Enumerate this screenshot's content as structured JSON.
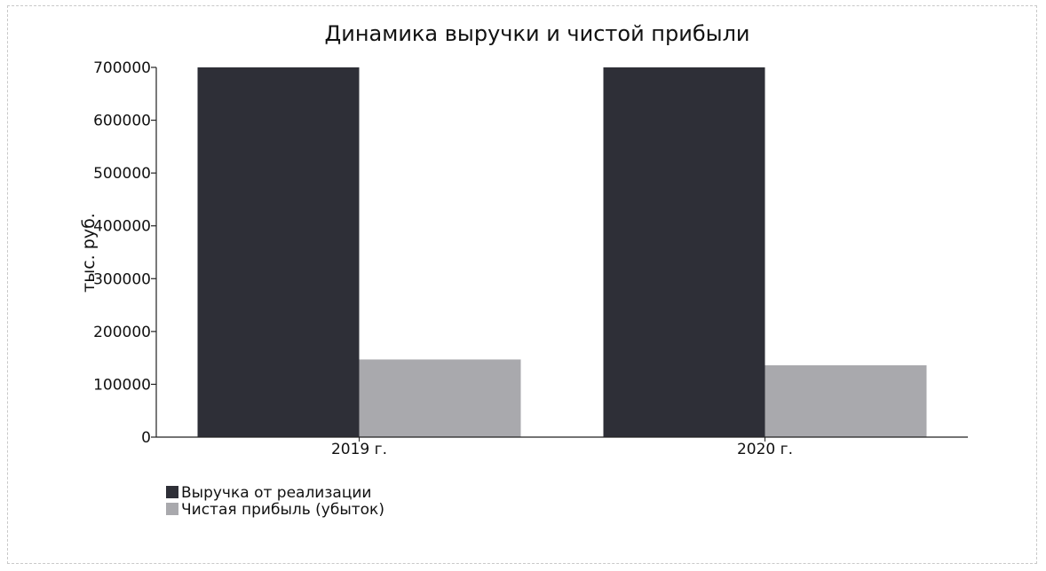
{
  "chart_data": {
    "type": "bar",
    "title": "Динамика выручки и чистой прибыли",
    "xlabel": "",
    "ylabel": "тыс. руб.",
    "categories": [
      "2019 г.",
      "2020 г."
    ],
    "series": [
      {
        "name": "Выручка от реализации",
        "values": [
          700000,
          700000
        ],
        "color": "#2e2f37"
      },
      {
        "name": "Чистая прибыль (убыток)",
        "values": [
          147000,
          136000
        ],
        "color": "#a9a9ad"
      }
    ],
    "ylim": [
      0,
      700000
    ],
    "yticks": [
      "0",
      "100000",
      "200000",
      "300000",
      "400000",
      "500000",
      "600000",
      "700000"
    ],
    "grid": false,
    "legend_position": "bottom-left"
  }
}
